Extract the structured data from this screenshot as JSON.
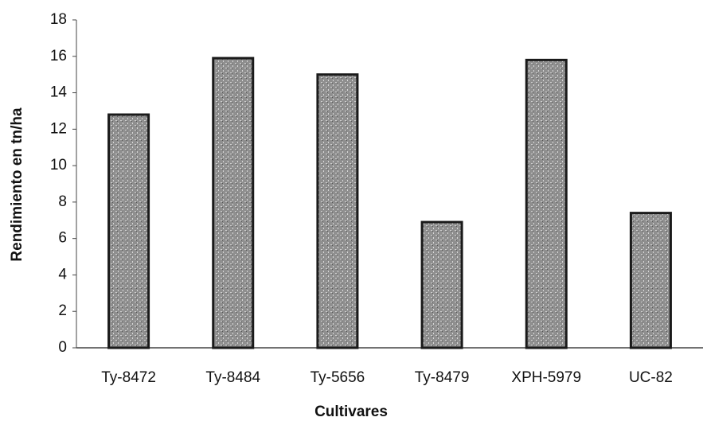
{
  "chart_data": {
    "type": "bar",
    "x_label": "Cultivares",
    "y_label": "Rendimiento en tn/ha",
    "categories": [
      "Ty-8472",
      "Ty-8484",
      "Ty-5656",
      "Ty-8479",
      "XPH-5979",
      "UC-82"
    ],
    "values": [
      12.8,
      15.9,
      15.0,
      6.9,
      15.8,
      7.4
    ],
    "color": "#9a9a9a",
    "ylim": [
      0,
      18
    ],
    "yticks": [
      0,
      2,
      4,
      6,
      8,
      10,
      12,
      14,
      16,
      18
    ],
    "grid": false
  }
}
